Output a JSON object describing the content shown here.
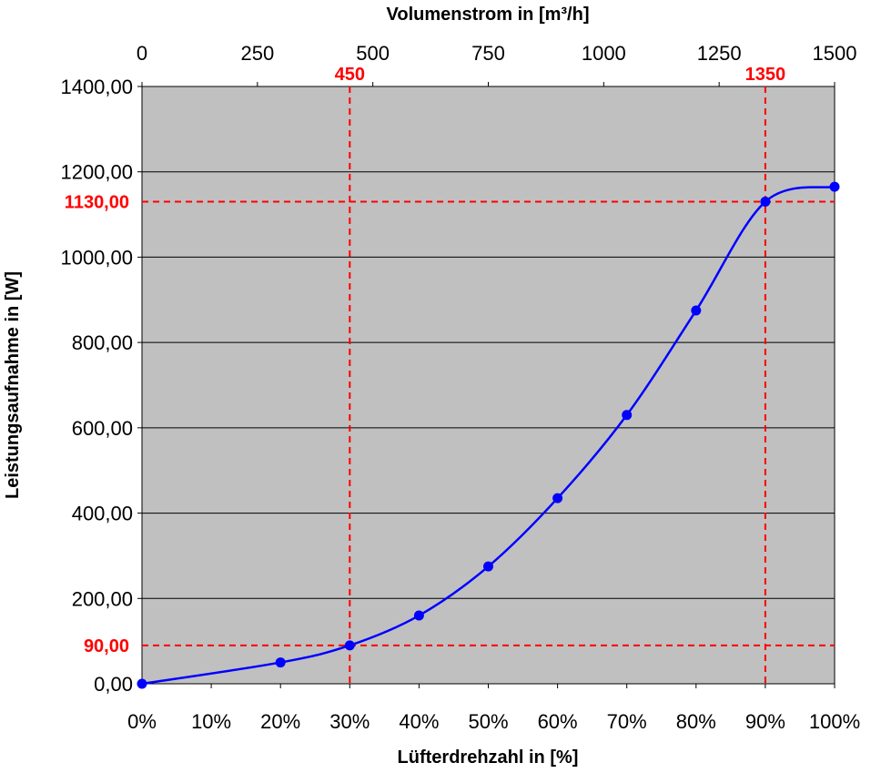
{
  "chart_data": {
    "type": "line",
    "xlabel": "Lüfterdrehzahl in [%]",
    "x2label": "Volumenstrom in [m³/h]",
    "ylabel": "Leistungsaufnahme in [W]",
    "xlim": [
      0,
      100
    ],
    "x2lim": [
      0,
      1500
    ],
    "ylim": [
      0,
      1400
    ],
    "x_ticks": [
      0,
      10,
      20,
      30,
      40,
      50,
      60,
      70,
      80,
      90,
      100
    ],
    "x_tick_labels": [
      "0%",
      "10%",
      "20%",
      "30%",
      "40%",
      "50%",
      "60%",
      "70%",
      "80%",
      "90%",
      "100%"
    ],
    "x2_ticks": [
      0,
      250,
      500,
      750,
      1000,
      1250,
      1500
    ],
    "x2_tick_labels": [
      "0",
      "250",
      "500",
      "750",
      "1000",
      "1250",
      "1500"
    ],
    "y_ticks": [
      0,
      200,
      400,
      600,
      800,
      1000,
      1200,
      1400
    ],
    "y_tick_labels": [
      "0,00",
      "200,00",
      "400,00",
      "600,00",
      "800,00",
      "1000,00",
      "1200,00",
      "1400,00"
    ],
    "grid": "horizontal",
    "plot_background": "#c0c0c0",
    "series": [
      {
        "color": "#0000ff",
        "x": [
          0,
          20,
          30,
          40,
          50,
          60,
          70,
          80,
          90,
          100
        ],
        "y": [
          0,
          50,
          90,
          160,
          275,
          435,
          630,
          875,
          1130,
          1165
        ]
      }
    ],
    "reference_lines": {
      "color": "#ff0000",
      "vertical": [
        {
          "x": 30,
          "label": "450"
        },
        {
          "x": 90,
          "label": "1350"
        }
      ],
      "horizontal": [
        {
          "y": 90,
          "label": "90,00"
        },
        {
          "y": 1130,
          "label": "1130,00"
        }
      ]
    }
  }
}
